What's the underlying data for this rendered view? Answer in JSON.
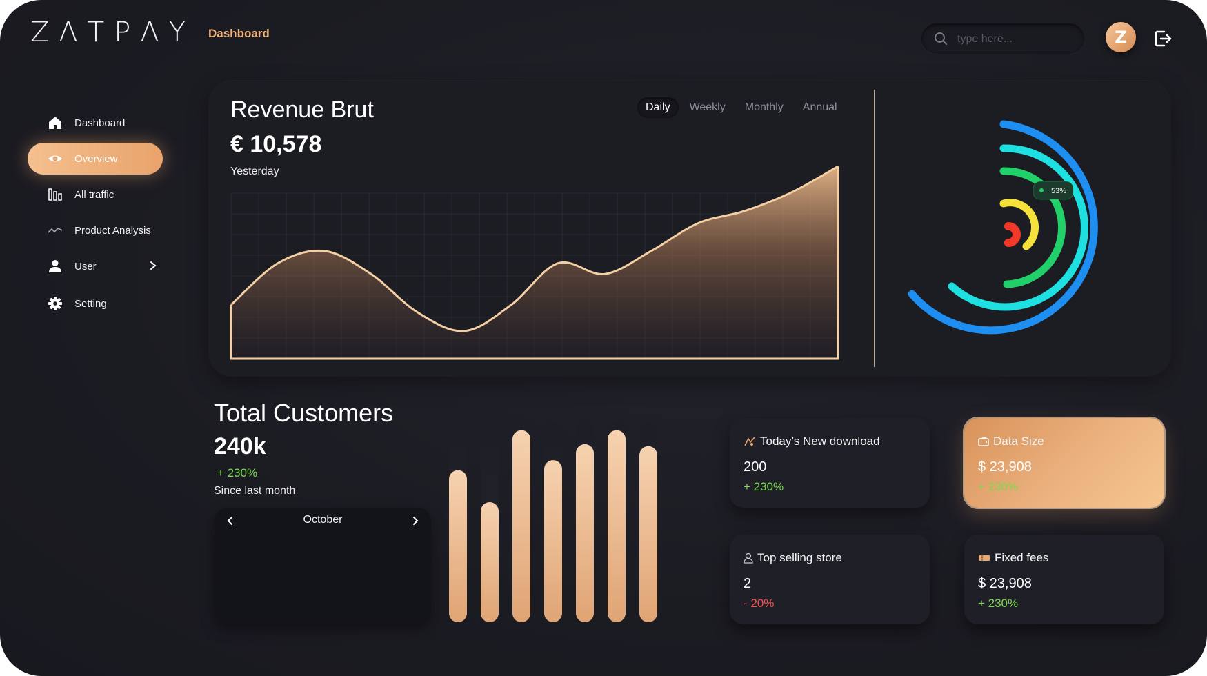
{
  "app": {
    "logo": "ZΛTPΛY"
  },
  "header": {
    "breadcrumb": "Dashboard",
    "search_placeholder": "type here...",
    "avatar_letter": "Z"
  },
  "sidebar": {
    "items": [
      {
        "label": "Dashboard",
        "icon": "home-icon"
      },
      {
        "label": "Overview",
        "icon": "eye-icon",
        "active": true
      },
      {
        "label": "All traffic",
        "icon": "bar-columns-icon"
      },
      {
        "label": "Product Analysis",
        "icon": "trend-line-icon"
      },
      {
        "label": "User",
        "icon": "user-icon"
      },
      {
        "label": "Setting",
        "icon": "gear-icon"
      }
    ]
  },
  "revenue": {
    "title": "Revenue Brut",
    "value": "€ 10,578",
    "subtitle": "Yesterday",
    "tabs": [
      "Daily",
      "Weekly",
      "Monthly",
      "Annual"
    ],
    "active_tab": "Daily"
  },
  "rings": {
    "badge": "53%"
  },
  "customers": {
    "title": "Total Customers",
    "value": "240k",
    "change": "+ 230%",
    "subtitle": "Since last month",
    "month": "October"
  },
  "cards": {
    "download": {
      "title": "Today’s New download",
      "value": "200",
      "change": "+ 230%"
    },
    "data_size": {
      "title": "Data Size",
      "value": "$ 23,908",
      "change": "+ 230%"
    },
    "top_store": {
      "title": "Top selling store",
      "value": "2",
      "change": "- 20%"
    },
    "fixed_fees": {
      "title": "Fixed fees",
      "value": "$ 23,908",
      "change": "+ 230%"
    }
  },
  "colors": {
    "accent": "#f0b27a",
    "positive": "#7bd94f",
    "negative": "#ff4d4d",
    "ring_blue": "#1e8ef0",
    "ring_cyan": "#1ee0e0",
    "ring_green": "#22d06a",
    "ring_yellow": "#f4e23a",
    "ring_red": "#f23a2a"
  },
  "chart_data": [
    {
      "type": "area",
      "x": [
        0,
        1,
        2,
        3,
        4,
        5,
        6,
        7,
        8,
        9,
        10,
        11,
        12,
        13
      ],
      "values": [
        35,
        62,
        70,
        55,
        30,
        18,
        35,
        62,
        55,
        70,
        88,
        96,
        108,
        125
      ]
    },
    {
      "type": "bar",
      "values": [
        76,
        60,
        96,
        81,
        89,
        96,
        88
      ]
    }
  ]
}
